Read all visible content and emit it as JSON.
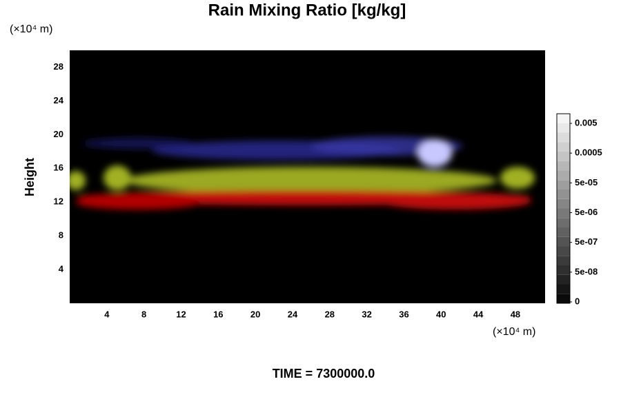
{
  "chart_data": {
    "type": "volume",
    "title": "Rain Mixing Ratio [kg/kg]",
    "ylabel": "Height",
    "xunit": "(×10⁴ m)",
    "yunit": "(×10⁴ m)",
    "footer": "TIME = 7300000.0",
    "xlim": [
      0,
      51.2
    ],
    "xticks": [
      4,
      8,
      12,
      16,
      20,
      24,
      28,
      32,
      36,
      40,
      44,
      48
    ],
    "ylim": [
      0,
      30
    ],
    "yticks": [
      4,
      8,
      12,
      16,
      20,
      24,
      28
    ],
    "colorbar": {
      "ticks": [
        0,
        {
          "value": 5e-08,
          "label": "5e-08"
        },
        {
          "value": 5e-07,
          "label": "5e-07"
        },
        {
          "value": 5e-06,
          "label": "5e-06"
        },
        {
          "value": 5e-05,
          "label": "5e-05"
        },
        0.0005,
        0.005
      ],
      "log": true
    }
  }
}
